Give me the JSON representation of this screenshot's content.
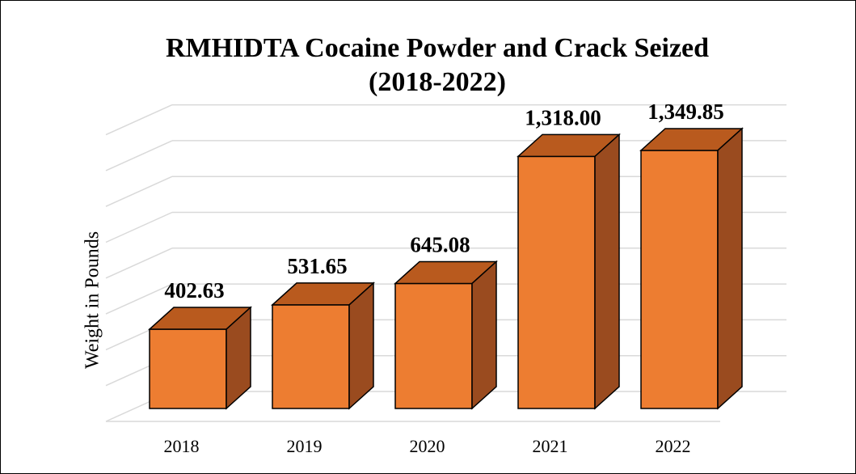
{
  "chart_data": {
    "type": "bar",
    "title_lines": [
      "RMHIDTA Cocaine Powder and Crack Seized",
      "(2018-2022)"
    ],
    "xlabel": "",
    "ylabel": "Weight in Pounds",
    "categories": [
      "2018",
      "2019",
      "2020",
      "2021",
      "2022"
    ],
    "values": [
      402.63,
      531.65,
      645.08,
      1318.0,
      1349.85
    ],
    "value_labels": [
      "402.63",
      "531.65",
      "645.08",
      "1,318.00",
      "1,349.85"
    ],
    "ylim": [
      0,
      1600
    ],
    "grid": true,
    "legend": "none",
    "bar_style": "3d",
    "colors": {
      "bar_front": "#ED7D31",
      "bar_top": "#B95A1E",
      "bar_side": "#9A4B1F",
      "bar_edge": "#000000",
      "gridline": "#D9D9D9"
    }
  }
}
